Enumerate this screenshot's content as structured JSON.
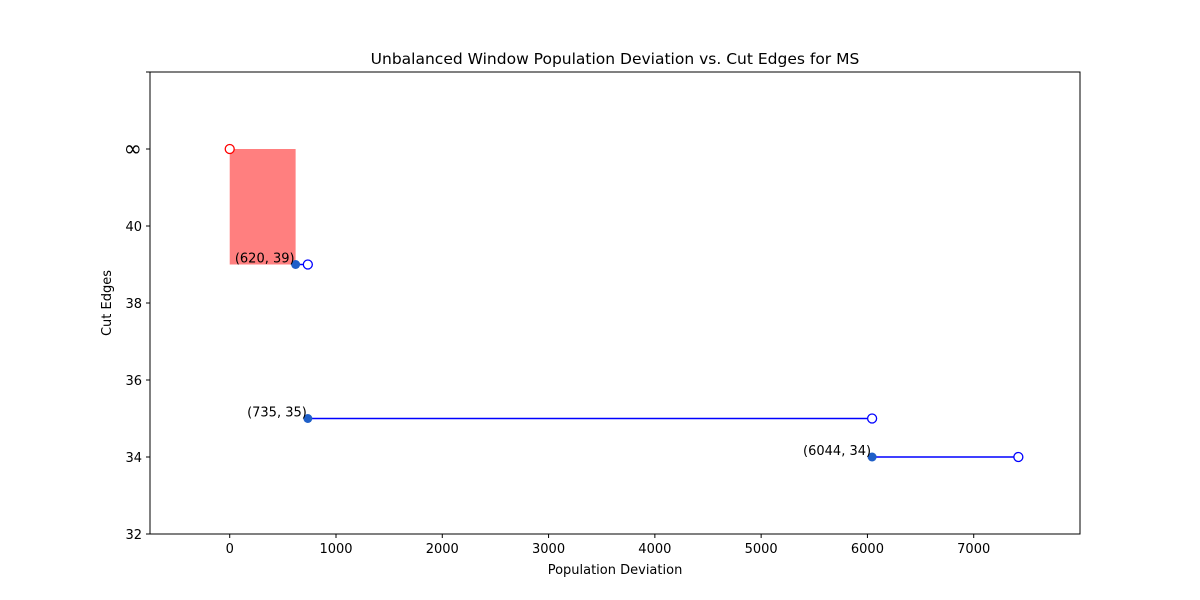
{
  "chart_data": {
    "type": "scatter",
    "title": "Unbalanced Window Population Deviation vs. Cut Edges for MS",
    "xlabel": "Population Deviation",
    "ylabel": "Cut Edges",
    "xlim": [
      -750,
      8000
    ],
    "ylim": [
      32,
      44
    ],
    "x_ticks": [
      0,
      1000,
      2000,
      3000,
      4000,
      5000,
      6000,
      7000
    ],
    "y_ticks": [
      {
        "value": 32,
        "label": "32"
      },
      {
        "value": 34,
        "label": "34"
      },
      {
        "value": 36,
        "label": "36"
      },
      {
        "value": 38,
        "label": "38"
      },
      {
        "value": 40,
        "label": "40"
      },
      {
        "value": 42,
        "label": "∞"
      }
    ],
    "grid": false,
    "shaded_region": {
      "x": [
        0,
        620
      ],
      "y": [
        39,
        42
      ],
      "color": "#ff7f7f"
    },
    "infinity_marker": {
      "x": 0,
      "y": 42,
      "color": "#ff0000"
    },
    "segments": [
      {
        "x_start": 620,
        "x_end": 735,
        "y": 39,
        "label": "(620, 39)"
      },
      {
        "x_start": 735,
        "x_end": 6044,
        "y": 35,
        "label": "(735, 35)"
      },
      {
        "x_start": 6044,
        "x_end": 7420,
        "y": 34,
        "label": "(6044, 34)"
      }
    ],
    "colors": {
      "line": "#0000ff",
      "point": "#1f5fc8",
      "open_point": "#0000ff"
    }
  }
}
